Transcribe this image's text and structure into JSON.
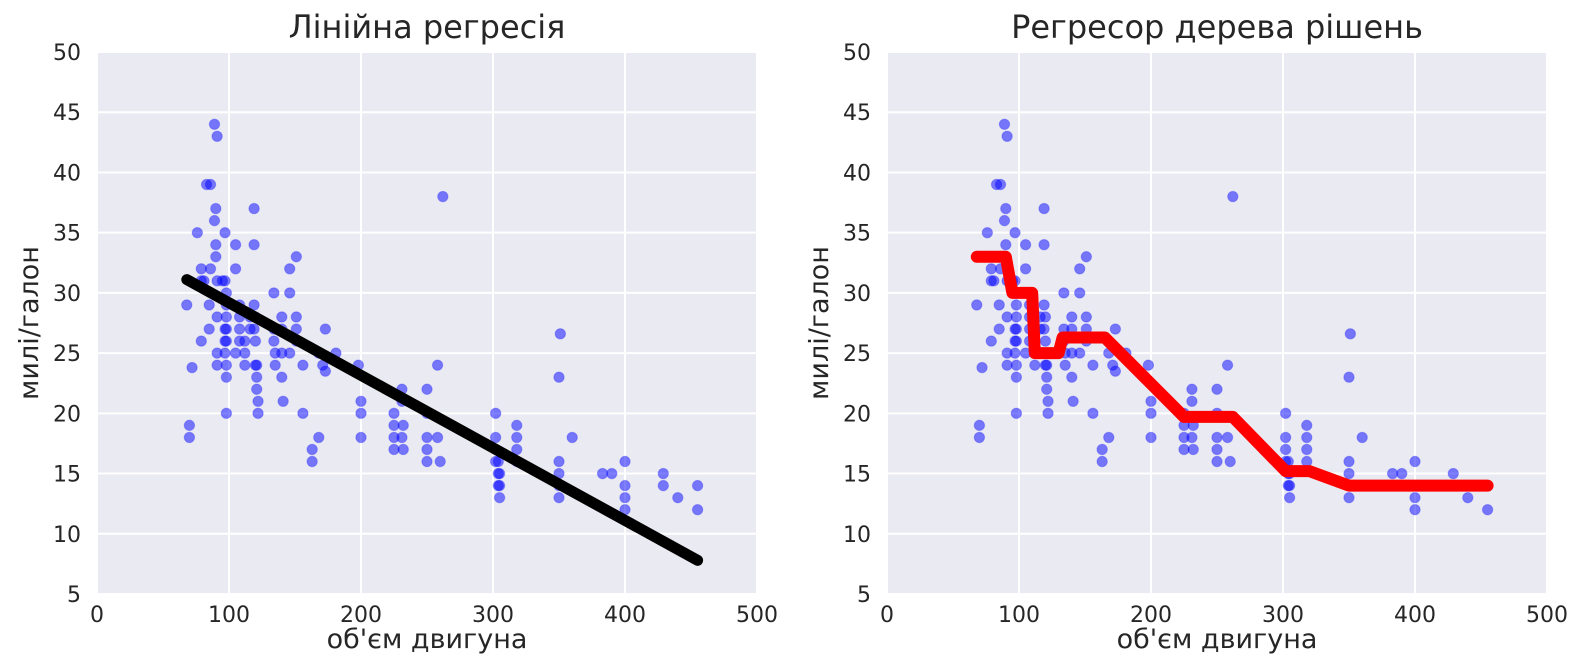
{
  "chart_data": [
    {
      "type": "scatter",
      "title": "Лінійна регресія",
      "xlabel": "об'єм двигуна",
      "ylabel": "милі/галон",
      "xlim": [
        0,
        500
      ],
      "ylim": [
        5,
        50
      ],
      "xticks": [
        "0",
        "100",
        "200",
        "300",
        "400",
        "500"
      ],
      "yticks": [
        "5",
        "10",
        "15",
        "20",
        "25",
        "30",
        "35",
        "40",
        "45",
        "50"
      ],
      "grid": true,
      "background_color": "#eaeaf2",
      "point_color": "#0000ff",
      "line_color": "#000000",
      "series": [
        {
          "kind": "scatter",
          "x": [
            68,
            70,
            70,
            72,
            76,
            79,
            79,
            79,
            81,
            83,
            85,
            85,
            86,
            86,
            89,
            89,
            90,
            90,
            90,
            91,
            91,
            91,
            91,
            91,
            95,
            97,
            97,
            97,
            97,
            97,
            98,
            98,
            98,
            98,
            98,
            98,
            98,
            98,
            105,
            105,
            105,
            108,
            108,
            108,
            108,
            112,
            112,
            112,
            116,
            116,
            119,
            119,
            119,
            119,
            120,
            120,
            120,
            121,
            121,
            121,
            122,
            122,
            134,
            134,
            134,
            135,
            135,
            140,
            140,
            140,
            140,
            141,
            146,
            146,
            146,
            151,
            151,
            151,
            151,
            156,
            156,
            163,
            163,
            168,
            168,
            171,
            173,
            173,
            181,
            198,
            200,
            200,
            200,
            225,
            225,
            225,
            225,
            231,
            231,
            231,
            232,
            232,
            250,
            250,
            250,
            250,
            250,
            258,
            258,
            260,
            262,
            302,
            302,
            302,
            302,
            304,
            304,
            304,
            305,
            305,
            305,
            318,
            318,
            318,
            318,
            350,
            350,
            350,
            350,
            350,
            351,
            360,
            383,
            390,
            400,
            400,
            400,
            400,
            429,
            429,
            440,
            455,
            455
          ],
          "y": [
            29,
            18,
            19,
            23.8,
            35,
            32,
            31,
            26,
            31,
            39,
            27,
            29,
            32,
            39,
            36,
            44,
            33,
            34,
            37,
            43,
            31,
            28,
            25,
            24,
            31,
            35,
            31,
            27,
            26,
            25,
            30,
            28,
            29,
            23,
            27,
            26,
            24,
            20,
            32,
            25,
            34,
            29,
            28,
            27,
            26,
            26,
            24,
            25,
            27,
            28,
            37,
            34,
            29,
            27,
            28,
            26,
            24,
            24,
            23,
            22,
            21,
            20,
            30,
            27,
            26,
            25,
            24,
            28,
            27,
            25,
            23,
            21,
            32,
            30,
            25,
            33,
            27,
            28,
            26,
            24,
            20,
            16,
            17,
            18,
            25,
            24,
            27,
            23.5,
            25,
            24,
            21,
            20,
            18,
            20,
            19,
            18,
            17,
            22,
            21,
            18,
            19,
            17,
            22,
            20,
            18,
            17,
            16,
            24,
            18,
            16,
            38,
            16,
            17,
            18,
            20,
            14,
            15,
            16,
            13,
            14,
            15,
            18,
            17,
            16,
            19,
            13,
            14,
            15,
            16,
            23,
            26.6,
            18,
            15,
            15,
            16,
            14,
            13,
            12,
            15,
            14,
            13,
            14,
            12
          ],
          "points": [
            [
              68,
              29
            ],
            [
              70,
              18
            ],
            [
              70,
              19
            ],
            [
              72,
              23.8
            ],
            [
              76,
              35
            ],
            [
              79,
              32
            ],
            [
              79,
              31
            ],
            [
              79,
              26
            ],
            [
              81,
              31
            ],
            [
              83,
              39
            ],
            [
              85,
              27
            ],
            [
              85,
              29
            ],
            [
              86,
              32
            ],
            [
              86,
              39
            ],
            [
              89,
              36
            ],
            [
              89,
              44
            ],
            [
              90,
              33
            ],
            [
              90,
              34
            ],
            [
              90,
              37
            ],
            [
              91,
              43
            ],
            [
              91,
              31
            ],
            [
              91,
              28
            ],
            [
              91,
              25
            ],
            [
              91,
              24
            ],
            [
              95,
              31
            ],
            [
              97,
              35
            ],
            [
              97,
              31
            ],
            [
              97,
              27
            ],
            [
              97,
              26
            ],
            [
              97,
              25
            ],
            [
              98,
              30
            ],
            [
              98,
              28
            ],
            [
              98,
              29
            ],
            [
              98,
              23
            ],
            [
              98,
              27
            ],
            [
              98,
              26
            ],
            [
              98,
              24
            ],
            [
              98,
              20
            ],
            [
              105,
              32
            ],
            [
              105,
              25
            ],
            [
              105,
              34
            ],
            [
              108,
              29
            ],
            [
              108,
              28
            ],
            [
              108,
              27
            ],
            [
              108,
              26
            ],
            [
              112,
              26
            ],
            [
              112,
              24
            ],
            [
              112,
              25
            ],
            [
              116,
              27
            ],
            [
              116,
              28
            ],
            [
              119,
              37
            ],
            [
              119,
              34
            ],
            [
              119,
              29
            ],
            [
              119,
              27
            ],
            [
              120,
              28
            ],
            [
              120,
              26
            ],
            [
              120,
              24
            ],
            [
              121,
              24
            ],
            [
              121,
              23
            ],
            [
              121,
              22
            ],
            [
              122,
              21
            ],
            [
              122,
              20
            ],
            [
              134,
              30
            ],
            [
              134,
              27
            ],
            [
              134,
              26
            ],
            [
              135,
              25
            ],
            [
              135,
              24
            ],
            [
              140,
              28
            ],
            [
              140,
              27
            ],
            [
              140,
              25
            ],
            [
              140,
              23
            ],
            [
              141,
              21
            ],
            [
              146,
              32
            ],
            [
              146,
              30
            ],
            [
              146,
              25
            ],
            [
              151,
              33
            ],
            [
              151,
              27
            ],
            [
              151,
              28
            ],
            [
              151,
              26
            ],
            [
              156,
              24
            ],
            [
              156,
              20
            ],
            [
              163,
              16
            ],
            [
              163,
              17
            ],
            [
              168,
              18
            ],
            [
              168,
              25
            ],
            [
              171,
              24
            ],
            [
              173,
              27
            ],
            [
              173,
              23.5
            ],
            [
              181,
              25
            ],
            [
              198,
              24
            ],
            [
              200,
              21
            ],
            [
              200,
              20
            ],
            [
              200,
              18
            ],
            [
              225,
              20
            ],
            [
              225,
              19
            ],
            [
              225,
              18
            ],
            [
              225,
              17
            ],
            [
              231,
              22
            ],
            [
              231,
              21
            ],
            [
              231,
              18
            ],
            [
              232,
              19
            ],
            [
              232,
              17
            ],
            [
              250,
              22
            ],
            [
              250,
              20
            ],
            [
              250,
              18
            ],
            [
              250,
              17
            ],
            [
              250,
              16
            ],
            [
              258,
              24
            ],
            [
              258,
              18
            ],
            [
              260,
              16
            ],
            [
              262,
              38
            ],
            [
              302,
              16
            ],
            [
              302,
              17
            ],
            [
              302,
              18
            ],
            [
              302,
              20
            ],
            [
              304,
              14
            ],
            [
              304,
              15
            ],
            [
              304,
              16
            ],
            [
              305,
              13
            ],
            [
              305,
              14
            ],
            [
              305,
              15
            ],
            [
              318,
              18
            ],
            [
              318,
              17
            ],
            [
              318,
              16
            ],
            [
              318,
              19
            ],
            [
              350,
              13
            ],
            [
              350,
              14
            ],
            [
              350,
              15
            ],
            [
              350,
              16
            ],
            [
              350,
              23
            ],
            [
              351,
              26.6
            ],
            [
              360,
              18
            ],
            [
              383,
              15
            ],
            [
              390,
              15
            ],
            [
              400,
              16
            ],
            [
              400,
              14
            ],
            [
              400,
              13
            ],
            [
              400,
              12
            ],
            [
              429,
              15
            ],
            [
              429,
              14
            ],
            [
              440,
              13
            ],
            [
              455,
              14
            ],
            [
              455,
              12
            ]
          ]
        },
        {
          "kind": "line",
          "x": [
            68,
            455
          ],
          "y": [
            31.1,
            7.8
          ]
        }
      ]
    },
    {
      "type": "scatter",
      "title": "Регресор дерева рішень",
      "xlabel": "об'єм двигуна",
      "ylabel": "милі/галон",
      "xlim": [
        0,
        500
      ],
      "ylim": [
        5,
        50
      ],
      "xticks": [
        "0",
        "100",
        "200",
        "300",
        "400",
        "500"
      ],
      "yticks": [
        "5",
        "10",
        "15",
        "20",
        "25",
        "30",
        "35",
        "40",
        "45",
        "50"
      ],
      "grid": true,
      "background_color": "#eaeaf2",
      "point_color": "#0000ff",
      "line_color": "#ff0000",
      "series": [
        {
          "kind": "scatter",
          "same_points_as_left_panel": true
        },
        {
          "kind": "line",
          "x": [
            68,
            90,
            95,
            110,
            112,
            130,
            133,
            165,
            225,
            262,
            302,
            320,
            350,
            455
          ],
          "y": [
            33,
            33,
            30,
            30,
            25,
            25,
            26.3,
            26.3,
            19.7,
            19.7,
            15.2,
            15.2,
            14,
            14
          ]
        }
      ]
    }
  ]
}
